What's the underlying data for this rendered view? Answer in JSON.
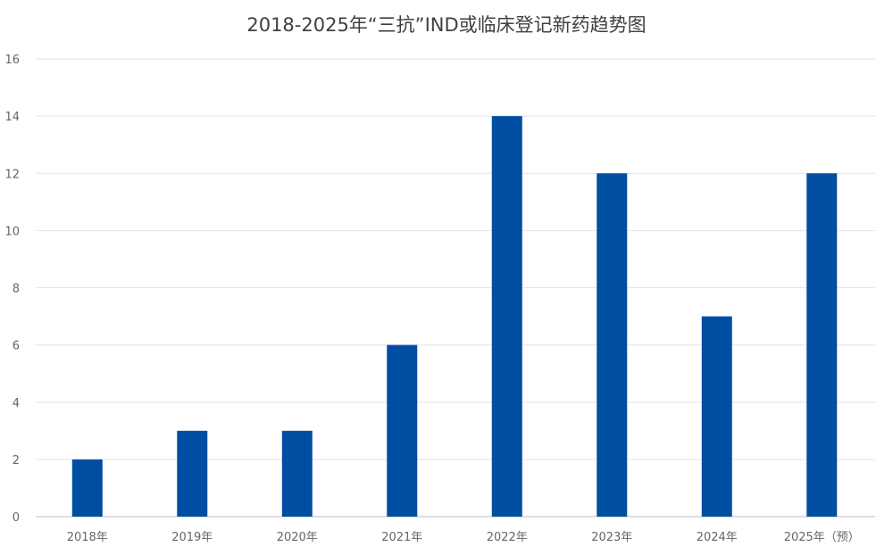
{
  "chart_data": {
    "type": "bar",
    "title": "2018-2025年“三抗”IND或临床登记新药趋势图",
    "categories": [
      "2018年",
      "2019年",
      "2020年",
      "2021年",
      "2022年",
      "2023年",
      "2024年",
      "2025年（预）"
    ],
    "values": [
      2,
      3,
      3,
      6,
      14,
      12,
      7,
      12
    ],
    "xlabel": "",
    "ylabel": "",
    "ylim": [
      0,
      16
    ],
    "yticks": [
      0,
      2,
      4,
      6,
      8,
      10,
      12,
      14,
      16
    ],
    "grid": true,
    "legend": "none",
    "bar_color": "#004EA2"
  }
}
